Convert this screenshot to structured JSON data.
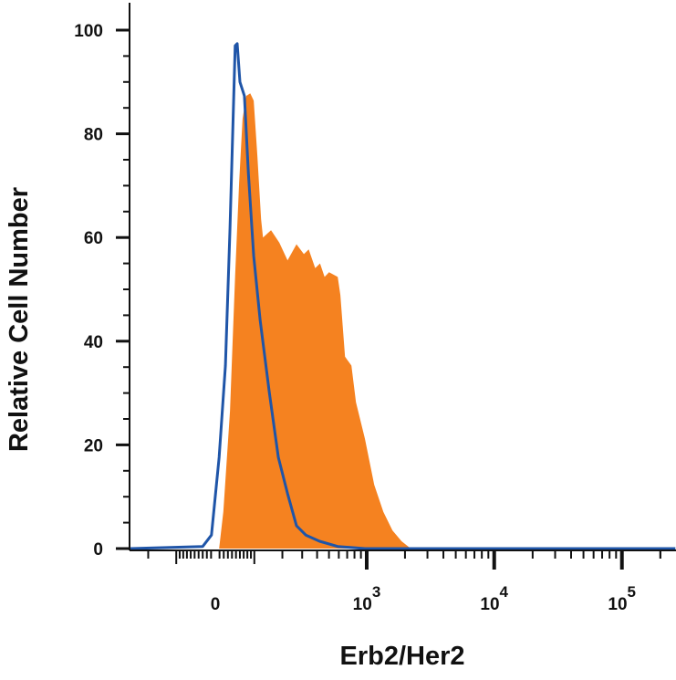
{
  "chart_data": {
    "type": "area",
    "title": "",
    "xlabel": "Erb2/Her2",
    "ylabel": "Relative Cell Number",
    "x_scale": "biexponential",
    "xlim": [
      -300,
      262144
    ],
    "ylim": [
      0,
      105
    ],
    "grid": false,
    "legend": "none",
    "y_ticks": [
      0,
      20,
      40,
      60,
      80,
      100
    ],
    "x_tick_labels": [
      {
        "value": 0,
        "base": "0",
        "exp": ""
      },
      {
        "value": 1000,
        "base": "10",
        "exp": "3"
      },
      {
        "value": 10000,
        "base": "10",
        "exp": "4"
      },
      {
        "value": 100000,
        "base": "10",
        "exp": "5"
      }
    ],
    "series": [
      {
        "style": "filled",
        "color": "#f58220",
        "x": [
          -9,
          9,
          19,
          35,
          48,
          58,
          67,
          77,
          88,
          98,
          109,
          121,
          127,
          155,
          187,
          223,
          268,
          310,
          341,
          386,
          423,
          461,
          501,
          588,
          618,
          673,
          756,
          822,
          968,
          1145,
          1351,
          1595,
          1882,
          2220
        ],
        "y": [
          0,
          0,
          7.1,
          26.5,
          52.9,
          70.5,
          82.9,
          87.3,
          87.8,
          86.4,
          75.8,
          63.5,
          60,
          61.4,
          59,
          55.6,
          58.7,
          56.8,
          57.7,
          54.1,
          55,
          52.4,
          53.3,
          52.4,
          48.9,
          37,
          35.3,
          28.2,
          21.2,
          12.3,
          7.1,
          3.5,
          1.4,
          0
        ]
      },
      {
        "style": "line",
        "color": "#1f55a8",
        "x": [
          -300,
          -30,
          -9,
          9,
          24,
          35,
          48,
          53,
          60,
          72,
          83,
          98,
          118,
          149,
          183,
          223,
          268,
          322,
          419,
          588,
          968,
          262144
        ],
        "y": [
          0,
          0.4,
          2.6,
          17.6,
          35.3,
          61.7,
          97,
          97.4,
          90,
          87.3,
          72.3,
          56.4,
          44,
          30,
          17.6,
          10.6,
          4.4,
          2.6,
          1.4,
          0.4,
          0,
          0
        ]
      }
    ]
  }
}
